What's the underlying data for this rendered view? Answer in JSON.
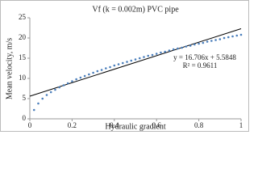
{
  "chart_data": {
    "type": "scatter",
    "title": "Vf (k = 0.002m) PVC pipe",
    "x_label": "Hydraulic gradient",
    "y_label": "Mean velocity, m/s",
    "xlim": [
      0,
      1
    ],
    "xticks": [
      0,
      0.2,
      0.4,
      0.6,
      0.8,
      1
    ],
    "ylim": [
      0,
      25
    ],
    "yticks": [
      0,
      5,
      10,
      15,
      20,
      25
    ],
    "grid": false,
    "series": [
      {
        "color": "#4a7ebb",
        "x": [
          0.02,
          0.04,
          0.06,
          0.08,
          0.1,
          0.12,
          0.14,
          0.16,
          0.18,
          0.2,
          0.22,
          0.24,
          0.26,
          0.28,
          0.3,
          0.32,
          0.34,
          0.36,
          0.38,
          0.4,
          0.42,
          0.44,
          0.46,
          0.48,
          0.5,
          0.52,
          0.54,
          0.56,
          0.58,
          0.6,
          0.62,
          0.64,
          0.66,
          0.68,
          0.7,
          0.72,
          0.74,
          0.76,
          0.78,
          0.8,
          0.82,
          0.84,
          0.86,
          0.88,
          0.9,
          0.92,
          0.94,
          0.96,
          0.98,
          1
        ],
        "values": [
          2.2,
          3.8,
          5.0,
          5.9,
          6.6,
          7.2,
          7.8,
          8.3,
          8.8,
          9.3,
          9.8,
          10.2,
          10.6,
          11.0,
          11.4,
          11.8,
          12.1,
          12.5,
          12.8,
          13.2,
          13.5,
          13.8,
          14.1,
          14.4,
          14.7,
          15.0,
          15.3,
          15.6,
          15.8,
          16.1,
          16.4,
          16.6,
          16.9,
          17.2,
          17.4,
          17.6,
          17.9,
          18.1,
          18.4,
          18.6,
          18.8,
          19.1,
          19.3,
          19.5,
          19.7,
          20.0,
          20.2,
          20.4,
          20.6,
          20.8
        ]
      }
    ],
    "trendline": {
      "color": "#000000",
      "x": [
        0,
        1
      ],
      "values": [
        5.6,
        22.3
      ]
    },
    "annotations": [
      "y = 16.706x + 5.5848",
      "R² = 0.9611"
    ]
  }
}
